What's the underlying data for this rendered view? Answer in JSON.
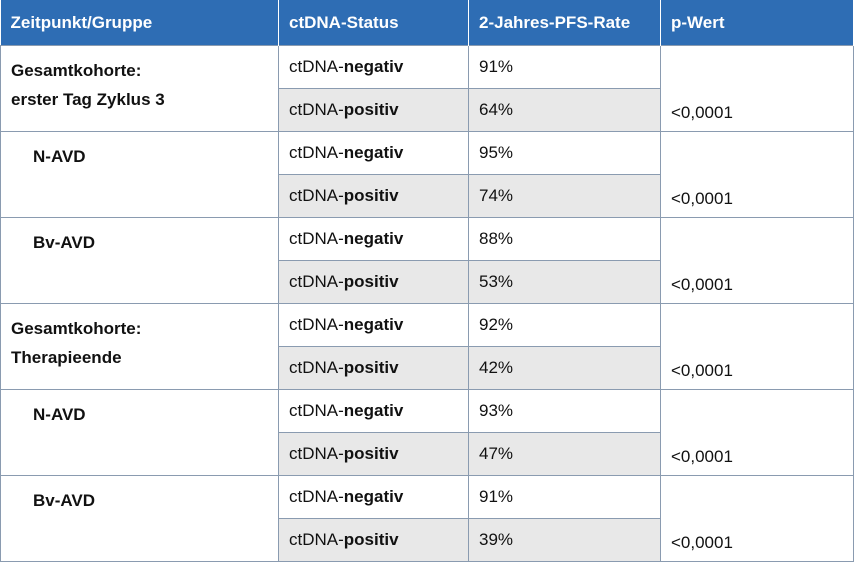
{
  "table": {
    "header": [
      "Zeitpunkt/Gruppe",
      "ctDNA-Status",
      "2-Jahres-PFS-Rate",
      "p-Wert"
    ],
    "groups": [
      {
        "label": [
          "Gesamtkohorte:",
          "erster Tag Zyklus 3"
        ],
        "indent": false,
        "p": "<0,0001",
        "rows": [
          {
            "status": [
              "ctDNA-",
              "negativ"
            ],
            "rate": "91%"
          },
          {
            "status": [
              "ctDNA-",
              "positiv"
            ],
            "rate": "64%"
          }
        ]
      },
      {
        "label": [
          "N-AVD"
        ],
        "indent": true,
        "p": "<0,0001",
        "rows": [
          {
            "status": [
              "ctDNA-",
              "negativ"
            ],
            "rate": "95%"
          },
          {
            "status": [
              "ctDNA-",
              "positiv"
            ],
            "rate": "74%"
          }
        ]
      },
      {
        "label": [
          "Bv-AVD"
        ],
        "indent": true,
        "p": "<0,0001",
        "rows": [
          {
            "status": [
              "ctDNA-",
              "negativ"
            ],
            "rate": "88%"
          },
          {
            "status": [
              "ctDNA-",
              "positiv"
            ],
            "rate": "53%"
          }
        ]
      },
      {
        "label": [
          "Gesamtkohorte:",
          "Therapieende"
        ],
        "indent": false,
        "p": "<0,0001",
        "rows": [
          {
            "status": [
              "ctDNA-",
              "negativ"
            ],
            "rate": "92%"
          },
          {
            "status": [
              "ctDNA-",
              "positiv"
            ],
            "rate": "42%"
          }
        ]
      },
      {
        "label": [
          "N-AVD"
        ],
        "indent": true,
        "p": "<0,0001",
        "rows": [
          {
            "status": [
              "ctDNA-",
              "negativ"
            ],
            "rate": "93%"
          },
          {
            "status": [
              "ctDNA-",
              "positiv"
            ],
            "rate": "47%"
          }
        ]
      },
      {
        "label": [
          "Bv-AVD"
        ],
        "indent": true,
        "p": "<0,0001",
        "rows": [
          {
            "status": [
              "ctDNA-",
              "negativ"
            ],
            "rate": "91%"
          },
          {
            "status": [
              "ctDNA-",
              "positiv"
            ],
            "rate": "39%"
          }
        ]
      }
    ]
  }
}
